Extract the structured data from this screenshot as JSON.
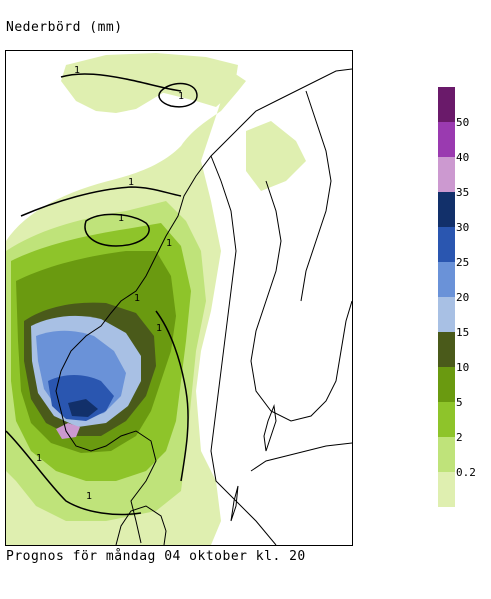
{
  "title": "Nederbörd (mm)",
  "footer": "Prognos för måndag 04 oktober kl. 20",
  "legend": {
    "colors": [
      "#dfefb0",
      "#bfe37a",
      "#8ec42a",
      "#6a9a10",
      "#4a5a1a",
      "#a8c0e4",
      "#6a92d8",
      "#2a56b0",
      "#12306a",
      "#cc99d0",
      "#9a3ab0",
      "#6a1a6a"
    ],
    "labels": [
      "0.2",
      "2",
      "5",
      "10",
      "15",
      "20",
      "25",
      "30",
      "35",
      "40",
      "50"
    ]
  },
  "contour_labels": [
    "1",
    "1",
    "1",
    "1",
    "1",
    "1",
    "1",
    "1",
    "1"
  ]
}
